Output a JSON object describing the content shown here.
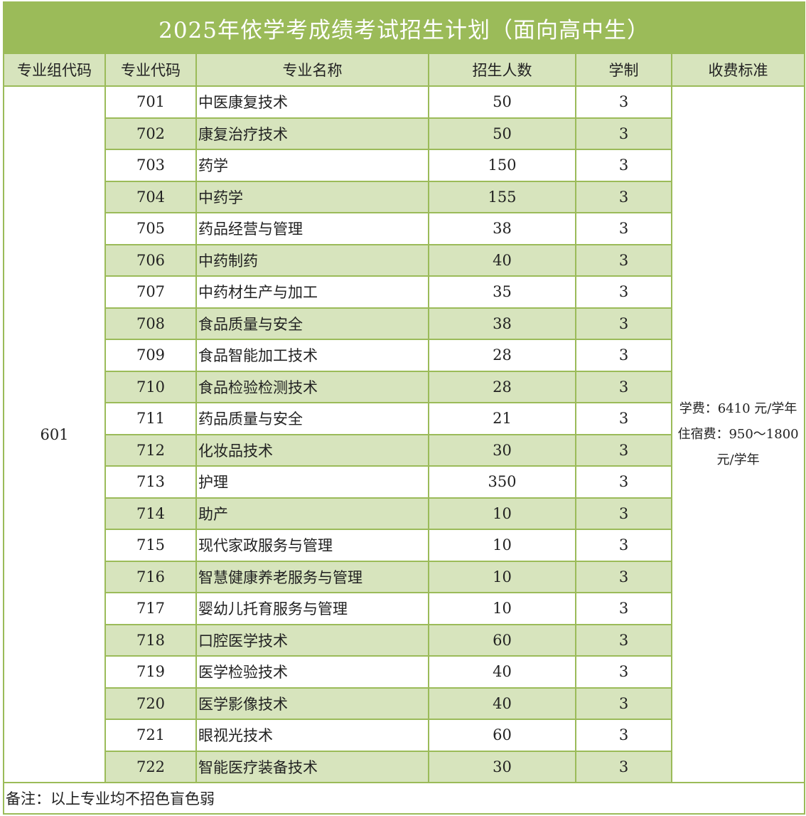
{
  "title": "2025年依学考成绩考试招生计划（面向高中生）",
  "headers": {
    "group_code": "专业组代码",
    "major_code": "专业代码",
    "major_name": "专业名称",
    "enrollment": "招生人数",
    "duration": "学制",
    "fees": "收费标准"
  },
  "group_code": "601",
  "fees": {
    "line1": "学费：6410 元/学年",
    "line2": "住宿费：950～1800",
    "line3": "元/学年"
  },
  "rows": [
    {
      "code": "701",
      "name": "中医康复技术",
      "count": "50",
      "years": "3"
    },
    {
      "code": "702",
      "name": "康复治疗技术",
      "count": "50",
      "years": "3"
    },
    {
      "code": "703",
      "name": "药学",
      "count": "150",
      "years": "3"
    },
    {
      "code": "704",
      "name": "中药学",
      "count": "155",
      "years": "3"
    },
    {
      "code": "705",
      "name": "药品经营与管理",
      "count": "38",
      "years": "3"
    },
    {
      "code": "706",
      "name": "中药制药",
      "count": "40",
      "years": "3"
    },
    {
      "code": "707",
      "name": "中药材生产与加工",
      "count": "35",
      "years": "3"
    },
    {
      "code": "708",
      "name": "食品质量与安全",
      "count": "38",
      "years": "3"
    },
    {
      "code": "709",
      "name": "食品智能加工技术",
      "count": "28",
      "years": "3"
    },
    {
      "code": "710",
      "name": "食品检验检测技术",
      "count": "28",
      "years": "3"
    },
    {
      "code": "711",
      "name": "药品质量与安全",
      "count": "21",
      "years": "3"
    },
    {
      "code": "712",
      "name": "化妆品技术",
      "count": "30",
      "years": "3"
    },
    {
      "code": "713",
      "name": "护理",
      "count": "350",
      "years": "3"
    },
    {
      "code": "714",
      "name": "助产",
      "count": "10",
      "years": "3"
    },
    {
      "code": "715",
      "name": "现代家政服务与管理",
      "count": "10",
      "years": "3"
    },
    {
      "code": "716",
      "name": "智慧健康养老服务与管理",
      "count": "10",
      "years": "3"
    },
    {
      "code": "717",
      "name": "婴幼儿托育服务与管理",
      "count": "10",
      "years": "3"
    },
    {
      "code": "718",
      "name": "口腔医学技术",
      "count": "60",
      "years": "3"
    },
    {
      "code": "719",
      "name": "医学检验技术",
      "count": "40",
      "years": "3"
    },
    {
      "code": "720",
      "name": "医学影像技术",
      "count": "40",
      "years": "3"
    },
    {
      "code": "721",
      "name": "眼视光技术",
      "count": "60",
      "years": "3"
    },
    {
      "code": "722",
      "name": "智能医疗装备技术",
      "count": "30",
      "years": "3"
    }
  ],
  "note": "备注：以上专业均不招色盲色弱",
  "colors": {
    "title_bg": "#9bbb59",
    "header_bg": "#d7e4bd",
    "alt_row_bg": "#d7e4bd",
    "border": "#9bbb59"
  }
}
